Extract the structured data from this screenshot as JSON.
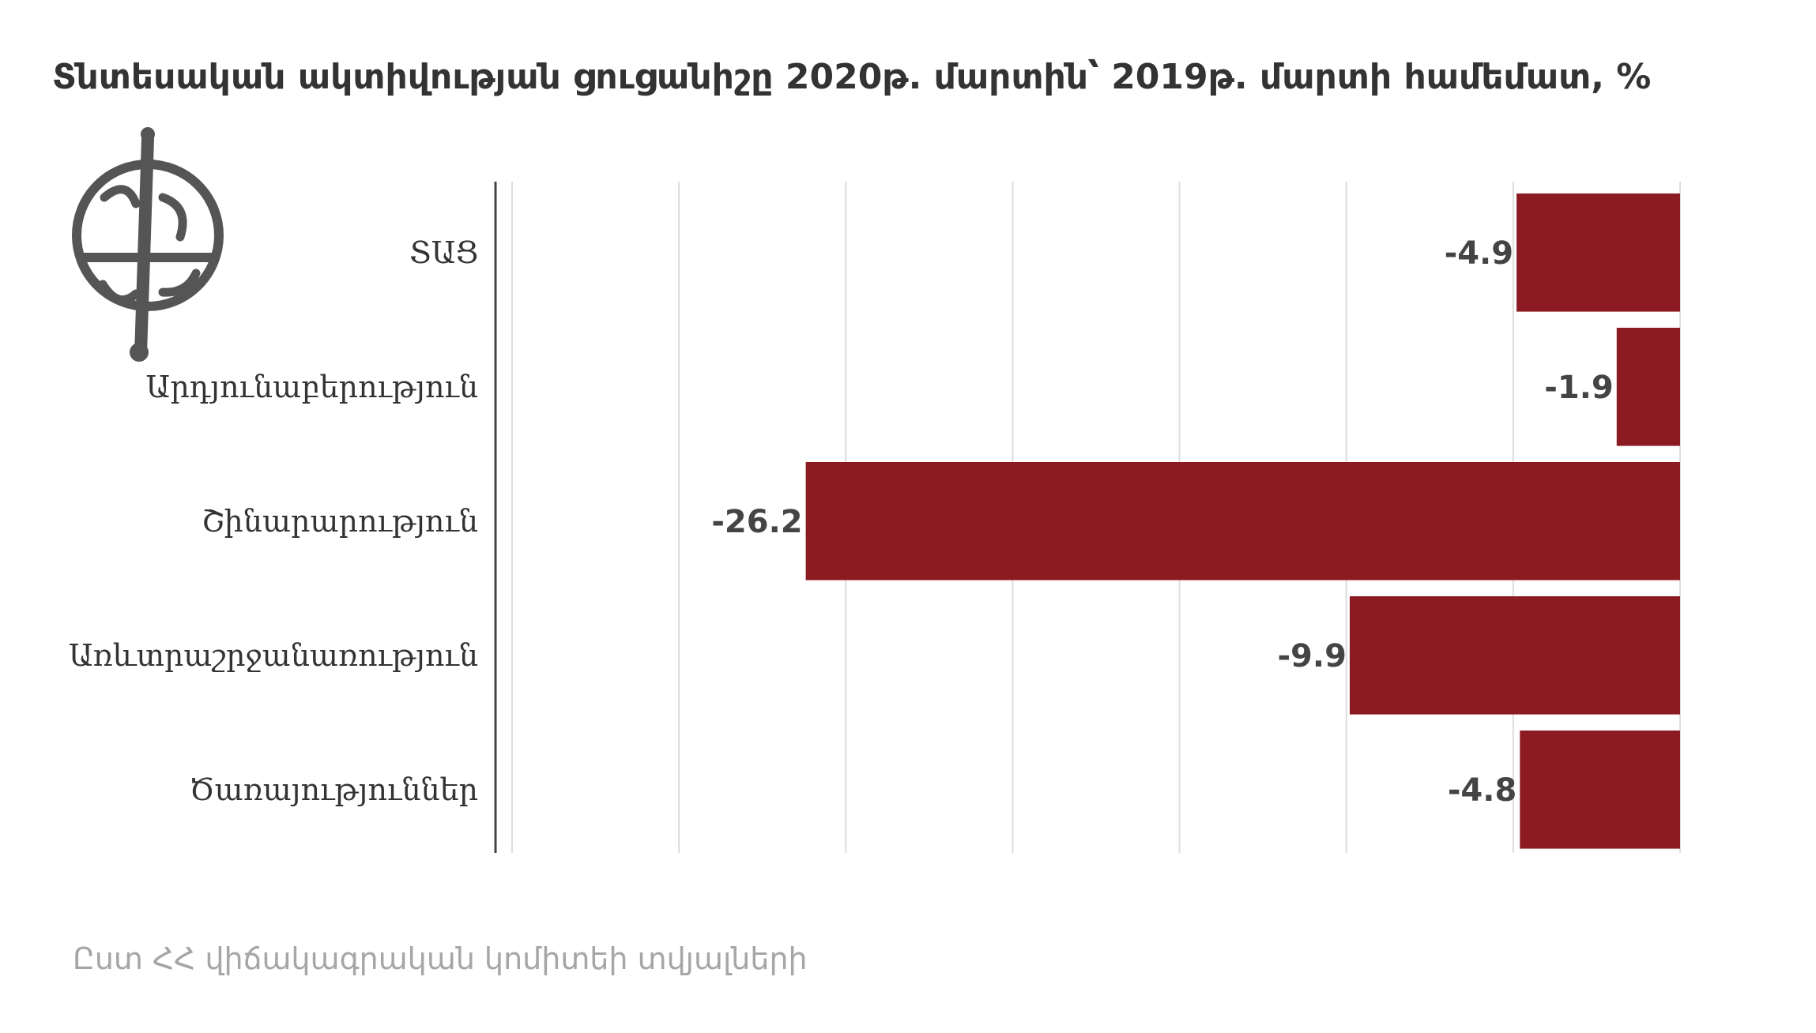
{
  "chart_data": {
    "type": "bar",
    "orientation": "horizontal",
    "title": "Տնտեսական ակտիվության ցուցանիշը 2020թ. մարտին՝ 2019թ. մարտի համեմատ, %",
    "source": "Ըստ ՀՀ վիճակագրական կոմիտեի տվյալների",
    "categories": [
      "ՏԱՑ",
      "Արդյունաբերություն",
      "Շինարարություն",
      "Առևտրաշրջանառություն",
      "Ծառայություններ"
    ],
    "values": [
      -4.9,
      -1.9,
      -26.2,
      -9.9,
      -4.8
    ],
    "value_labels": [
      "-4.9",
      "-1.9",
      "-26.2",
      "-9.9",
      "-4.8"
    ],
    "xlim": [
      -35,
      0
    ],
    "grid": true,
    "legend": "none",
    "bar_color": "#8c1a22"
  },
  "logo": {
    "icon": "armenian-emblem-icon"
  }
}
